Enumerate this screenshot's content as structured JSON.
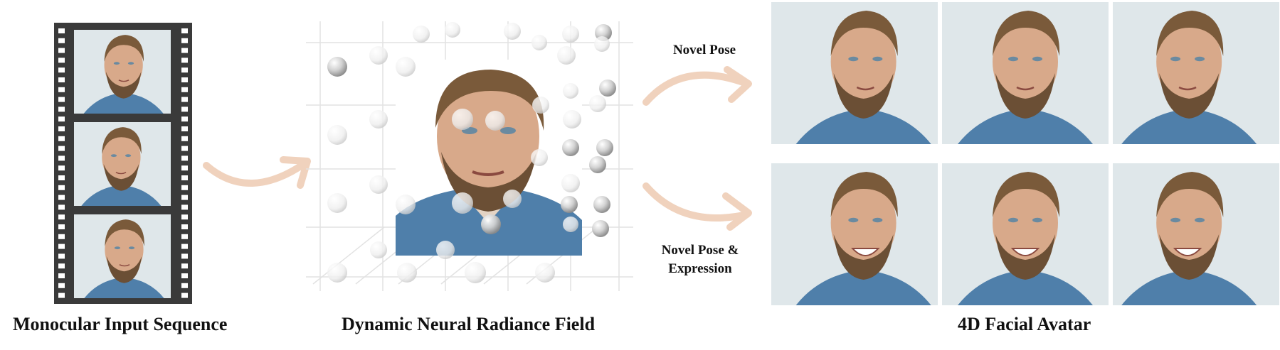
{
  "figure": {
    "captions": {
      "input": "Monocular Input Sequence",
      "field": "Dynamic Neural Radiance Field",
      "avatar": "4D Facial Avatar"
    },
    "arrow_labels": {
      "novel_pose": "Novel Pose",
      "novel_pose_expression_line1": "Novel Pose &",
      "novel_pose_expression_line2": "Expression"
    },
    "colors": {
      "arrow": "#f0d2bd",
      "film": "#3a3a3a",
      "photo_bg": "#dfe7ea",
      "shirt": "#4f7faa",
      "skin": "#d8a98a",
      "hair": "#7a5a3a"
    }
  }
}
